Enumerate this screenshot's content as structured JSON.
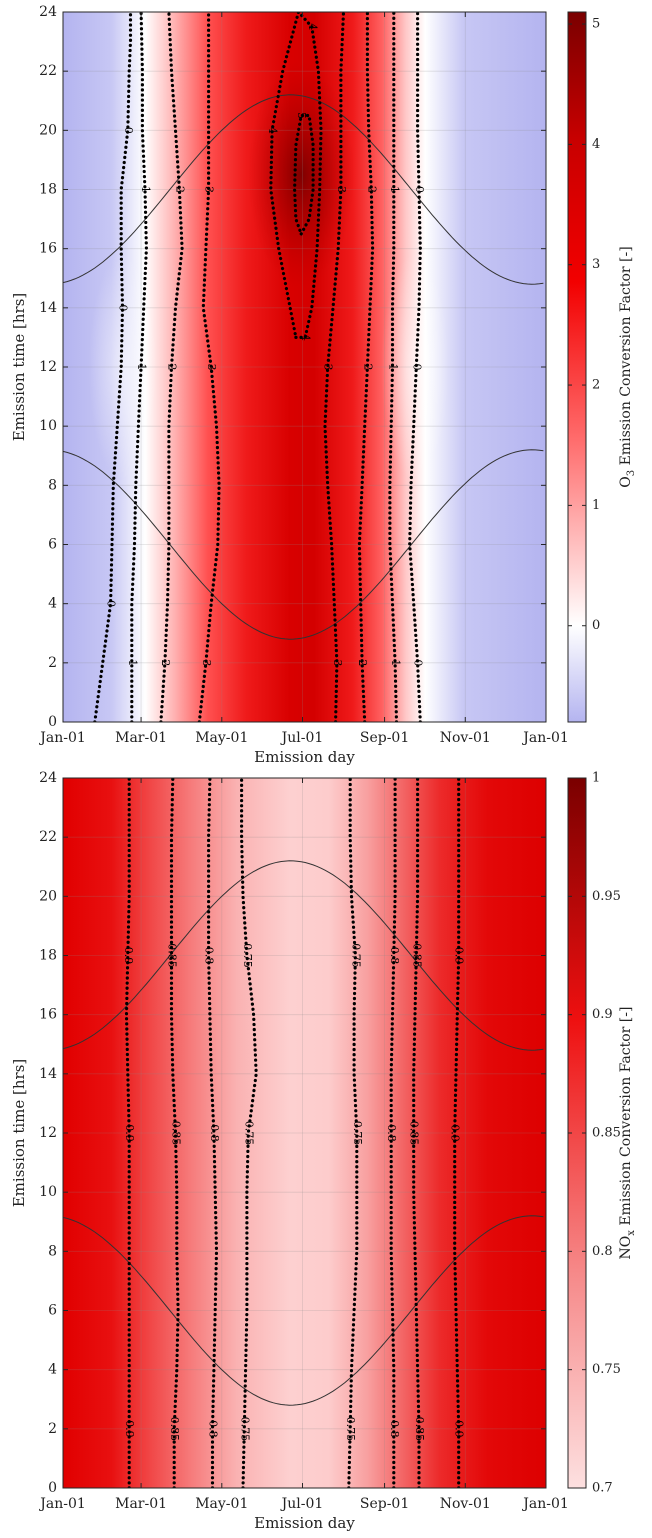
{
  "chart_data": [
    {
      "type": "heatmap",
      "title": "",
      "xlabel": "Emission day",
      "ylabel": "Emission time [hrs]",
      "x_ticks": [
        "Jan-01",
        "Mar-01",
        "May-01",
        "Jul-01",
        "Sep-01",
        "Nov-01",
        "Jan-01"
      ],
      "x_tick_days": [
        0,
        59,
        120,
        181,
        243,
        304,
        365
      ],
      "xlim": [
        0,
        365
      ],
      "y_ticks": [
        "0",
        "2",
        "4",
        "6",
        "8",
        "10",
        "12",
        "14",
        "16",
        "18",
        "20",
        "22",
        "24"
      ],
      "ylim": [
        0,
        24
      ],
      "grid": true,
      "colorbar": {
        "label_main": "O",
        "label_sub": "3",
        "label_rest": " Emission Conversion Factor [-]",
        "ticks": [
          "0",
          "1",
          "2",
          "3",
          "4",
          "5"
        ],
        "tick_values": [
          0,
          1,
          2,
          3,
          4,
          5
        ],
        "range": [
          -0.8,
          5.1
        ],
        "colormap": "blue-white-red"
      },
      "contours": [
        {
          "level": 0,
          "label": "0",
          "day": [
            24,
            36,
            37,
            38,
            41,
            44,
            45,
            44,
            44,
            49,
            50,
            51,
            51
          ],
          "hour": [
            0,
            4,
            6,
            8,
            10,
            12,
            14,
            16,
            18,
            20,
            22,
            23,
            24
          ]
        },
        {
          "level": 1,
          "label": "1",
          "day": [
            52,
            52,
            52,
            54,
            55,
            57,
            59,
            61,
            63,
            62,
            60,
            60,
            59
          ],
          "hour": [
            0,
            2,
            4,
            6,
            8,
            10,
            12,
            14,
            16,
            18,
            20,
            22,
            24
          ]
        },
        {
          "level": 2,
          "label": "2",
          "day": [
            74,
            77,
            79,
            80,
            80,
            80,
            82,
            85,
            90,
            88,
            85,
            82,
            80
          ],
          "hour": [
            0,
            2,
            4,
            6,
            8,
            10,
            12,
            14,
            16,
            18,
            20,
            22,
            24
          ]
        },
        {
          "level": 3,
          "label": "3",
          "day": [
            103,
            108,
            112,
            117,
            118,
            116,
            112,
            106,
            108,
            110,
            110,
            110,
            110
          ],
          "hour": [
            0,
            2,
            4,
            6,
            8,
            10,
            12,
            14,
            16,
            18,
            20,
            22,
            24
          ]
        },
        {
          "level": 4,
          "label": "4",
          "day": [
            176,
            183,
            188,
            192,
            194,
            195,
            193,
            188,
            178,
            166,
            158,
            157,
            163,
            176
          ],
          "hour": [
            13,
            13,
            14,
            16,
            18,
            20,
            22,
            23.5,
            24,
            22,
            20,
            18,
            16,
            13
          ]
        },
        {
          "level": 5,
          "label": "5",
          "day": [
            180,
            186,
            189,
            189,
            186,
            180,
            176,
            175,
            176,
            180
          ],
          "hour": [
            16.5,
            17,
            18,
            19.5,
            20.5,
            20.5,
            19.5,
            18,
            17,
            16.5
          ]
        },
        {
          "level": 3,
          "label": "3",
          "day": [
            206,
            207,
            205,
            203,
            200,
            198,
            200,
            204,
            208,
            210,
            210,
            210,
            212
          ],
          "hour": [
            0,
            2,
            4,
            6,
            8,
            10,
            12,
            14,
            16,
            18,
            20,
            22,
            24
          ]
        },
        {
          "level": 2,
          "label": "2",
          "day": [
            228,
            226,
            225,
            224,
            226,
            228,
            230,
            232,
            234,
            233,
            231,
            230,
            230
          ],
          "hour": [
            0,
            2,
            4,
            6,
            8,
            10,
            12,
            14,
            16,
            18,
            20,
            22,
            24
          ]
        },
        {
          "level": 1,
          "label": "1",
          "day": [
            252,
            251,
            249,
            247,
            247,
            248,
            249,
            249,
            250,
            250,
            250,
            250,
            250
          ],
          "hour": [
            0,
            2,
            4,
            6,
            8,
            10,
            12,
            14,
            16,
            18,
            20,
            22,
            24
          ]
        },
        {
          "level": 0,
          "label": "0",
          "day": [
            270,
            268,
            265,
            262,
            263,
            265,
            267,
            269,
            270,
            269,
            268,
            268,
            268
          ],
          "hour": [
            0,
            2,
            4,
            6,
            8,
            10,
            12,
            14,
            16,
            18,
            20,
            22,
            24
          ]
        }
      ]
    },
    {
      "type": "heatmap",
      "title": "",
      "xlabel": "Emission day",
      "ylabel": "Emission time [hrs]",
      "x_ticks": [
        "Jan-01",
        "Mar-01",
        "May-01",
        "Jul-01",
        "Sep-01",
        "Nov-01",
        "Jan-01"
      ],
      "x_tick_days": [
        0,
        59,
        120,
        181,
        243,
        304,
        365
      ],
      "xlim": [
        0,
        365
      ],
      "y_ticks": [
        "0",
        "2",
        "4",
        "6",
        "8",
        "10",
        "12",
        "14",
        "16",
        "18",
        "20",
        "22",
        "24"
      ],
      "ylim": [
        0,
        24
      ],
      "grid": true,
      "colorbar": {
        "label_main": "NO",
        "label_sub": "x",
        "label_rest": " Emission Conversion Factor [-]",
        "ticks": [
          "0.7",
          "0.75",
          "0.8",
          "0.85",
          "0.9",
          "0.95",
          "1"
        ],
        "tick_values": [
          0.7,
          0.75,
          0.8,
          0.85,
          0.9,
          0.95,
          1.0
        ],
        "range": [
          0.7,
          1.0
        ],
        "colormap": "white-red"
      },
      "contours": [
        {
          "level": 0.9,
          "label": "0.9",
          "day": [
            50,
            50,
            50,
            50,
            50,
            50,
            50,
            49,
            48,
            49,
            50,
            50,
            50
          ],
          "hour": [
            0,
            2,
            4,
            6,
            8,
            10,
            12,
            14,
            16,
            18,
            20,
            22,
            24
          ]
        },
        {
          "level": 0.85,
          "label": "0.85",
          "day": [
            84,
            84,
            86,
            87,
            86,
            86,
            85,
            83,
            82,
            82,
            82,
            82,
            83
          ],
          "hour": [
            0,
            2,
            4,
            6,
            8,
            10,
            12,
            14,
            16,
            18,
            20,
            22,
            24
          ]
        },
        {
          "level": 0.8,
          "label": "0.8",
          "day": [
            113,
            113,
            114,
            115,
            116,
            115,
            114,
            112,
            111,
            110,
            110,
            110,
            111
          ],
          "hour": [
            0,
            2,
            4,
            6,
            8,
            10,
            12,
            14,
            16,
            18,
            20,
            22,
            24
          ]
        },
        {
          "level": 0.75,
          "label": "0.75",
          "day": [
            136,
            137,
            138,
            139,
            139,
            139,
            140,
            146,
            144,
            139,
            136,
            135,
            135
          ],
          "hour": [
            0,
            2,
            4,
            6,
            8,
            10,
            12,
            14,
            16,
            18,
            20,
            22,
            24
          ]
        },
        {
          "level": 0.75,
          "label": "0.75",
          "day": [
            216,
            217,
            218,
            220,
            222,
            222,
            222,
            220,
            220,
            221,
            218,
            217,
            217
          ],
          "hour": [
            0,
            2,
            4,
            6,
            8,
            10,
            12,
            14,
            16,
            18,
            20,
            22,
            24
          ]
        },
        {
          "level": 0.8,
          "label": "0.8",
          "day": [
            250,
            250,
            250,
            249,
            248,
            248,
            248,
            248,
            249,
            250,
            251,
            251,
            251
          ],
          "hour": [
            0,
            2,
            4,
            6,
            8,
            10,
            12,
            14,
            16,
            18,
            20,
            22,
            24
          ]
        },
        {
          "level": 0.85,
          "label": "0.85",
          "day": [
            269,
            269,
            268,
            267,
            266,
            265,
            265,
            265,
            266,
            267,
            268,
            268,
            268
          ],
          "hour": [
            0,
            2,
            4,
            6,
            8,
            10,
            12,
            14,
            16,
            18,
            20,
            22,
            24
          ]
        },
        {
          "level": 0.9,
          "label": "0.9",
          "day": [
            299,
            299,
            298,
            297,
            296,
            296,
            296,
            297,
            298,
            299,
            299,
            299,
            299
          ],
          "hour": [
            0,
            2,
            4,
            6,
            8,
            10,
            12,
            14,
            16,
            18,
            20,
            22,
            24
          ]
        }
      ]
    }
  ]
}
